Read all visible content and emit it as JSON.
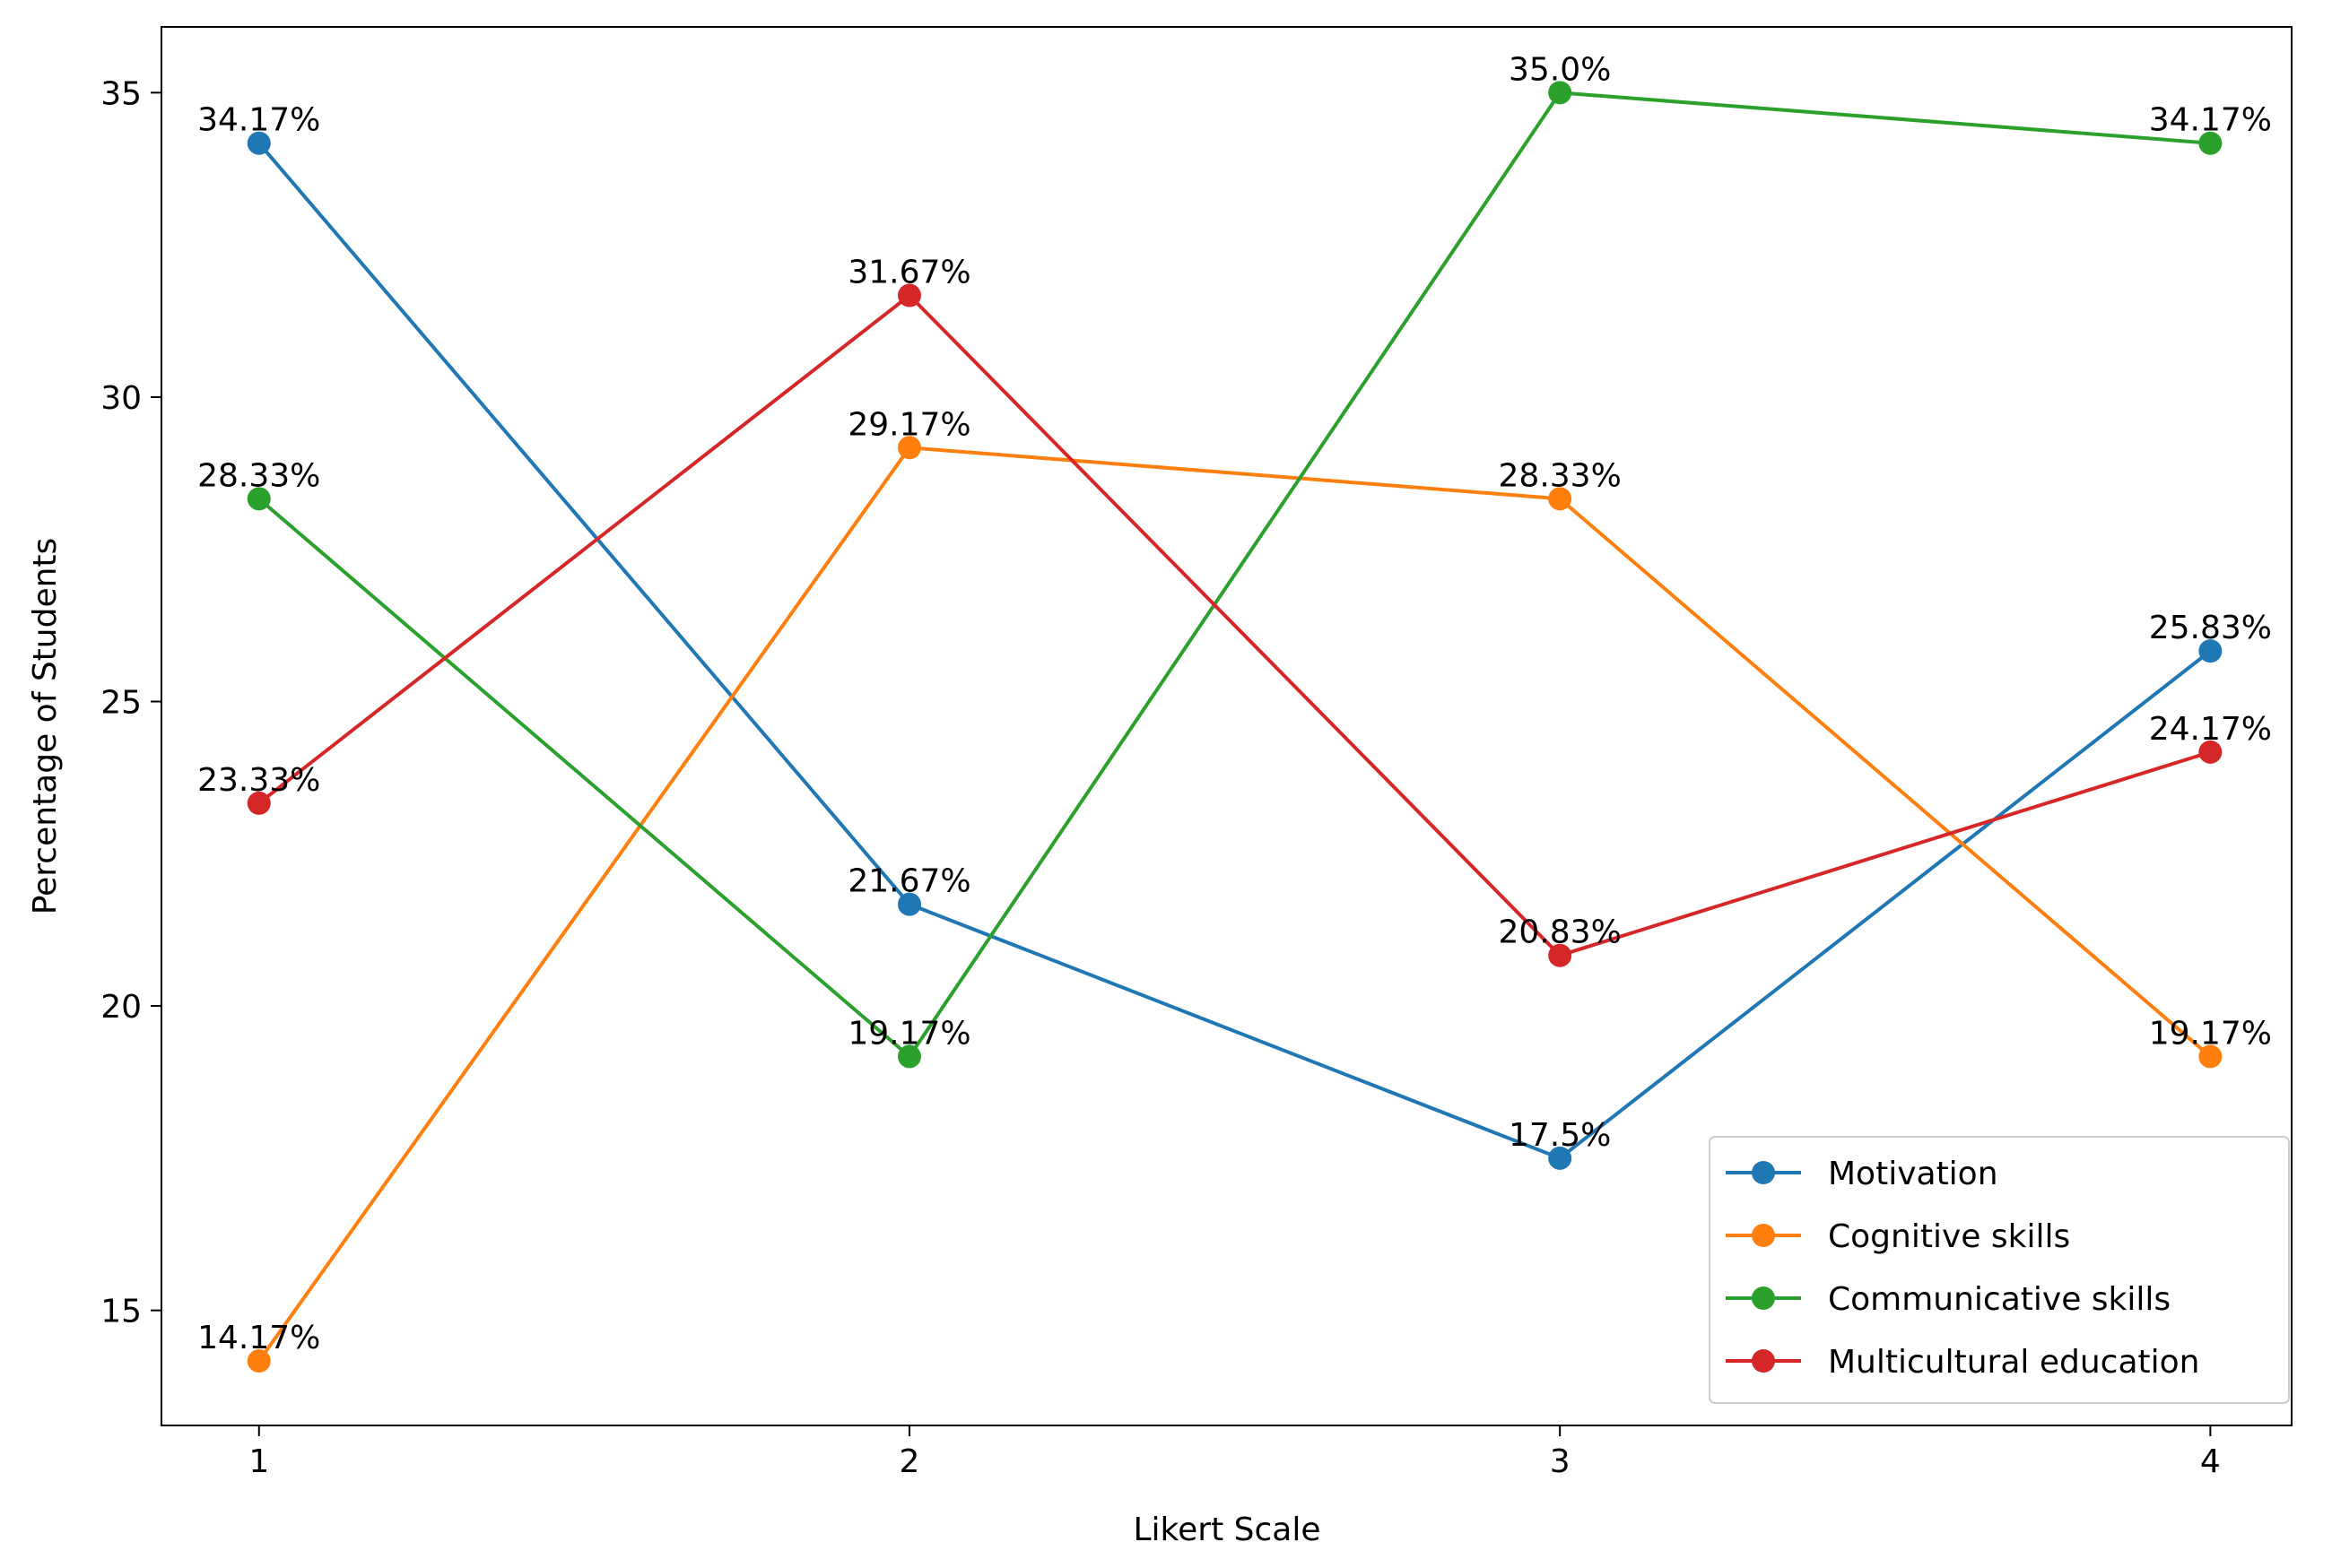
{
  "chart_data": {
    "type": "line",
    "xlabel": "Likert Scale",
    "ylabel": "Percentage of Students",
    "x": [
      1,
      2,
      3,
      4
    ],
    "series": [
      {
        "name": "Motivation",
        "color": "#1f77b4",
        "values": [
          34.17,
          21.67,
          17.5,
          25.83
        ],
        "value_labels": [
          "34.17%",
          "21.67%",
          "17.5%",
          "25.83%"
        ]
      },
      {
        "name": "Cognitive skills",
        "color": "#ff7f0e",
        "values": [
          14.17,
          29.17,
          28.33,
          19.17
        ],
        "value_labels": [
          "14.17%",
          "29.17%",
          "28.33%",
          "19.17%"
        ]
      },
      {
        "name": "Communicative skills",
        "color": "#2ca02c",
        "values": [
          28.33,
          19.17,
          35.0,
          34.17
        ],
        "value_labels": [
          "28.33%",
          "19.17%",
          "35.0%",
          "34.17%"
        ]
      },
      {
        "name": "Multicultural education",
        "color": "#d62728",
        "values": [
          23.33,
          31.67,
          20.83,
          24.17
        ],
        "value_labels": [
          "23.33%",
          "31.67%",
          "20.83%",
          "24.17%"
        ]
      }
    ],
    "xlim": [
      0.85,
      4.125
    ],
    "xticks": [
      1,
      2,
      3,
      4
    ],
    "ylim": [
      13.11,
      36.08
    ],
    "yticks": [
      15,
      20,
      25,
      30,
      35
    ],
    "grid": false,
    "legend": "lower right"
  }
}
